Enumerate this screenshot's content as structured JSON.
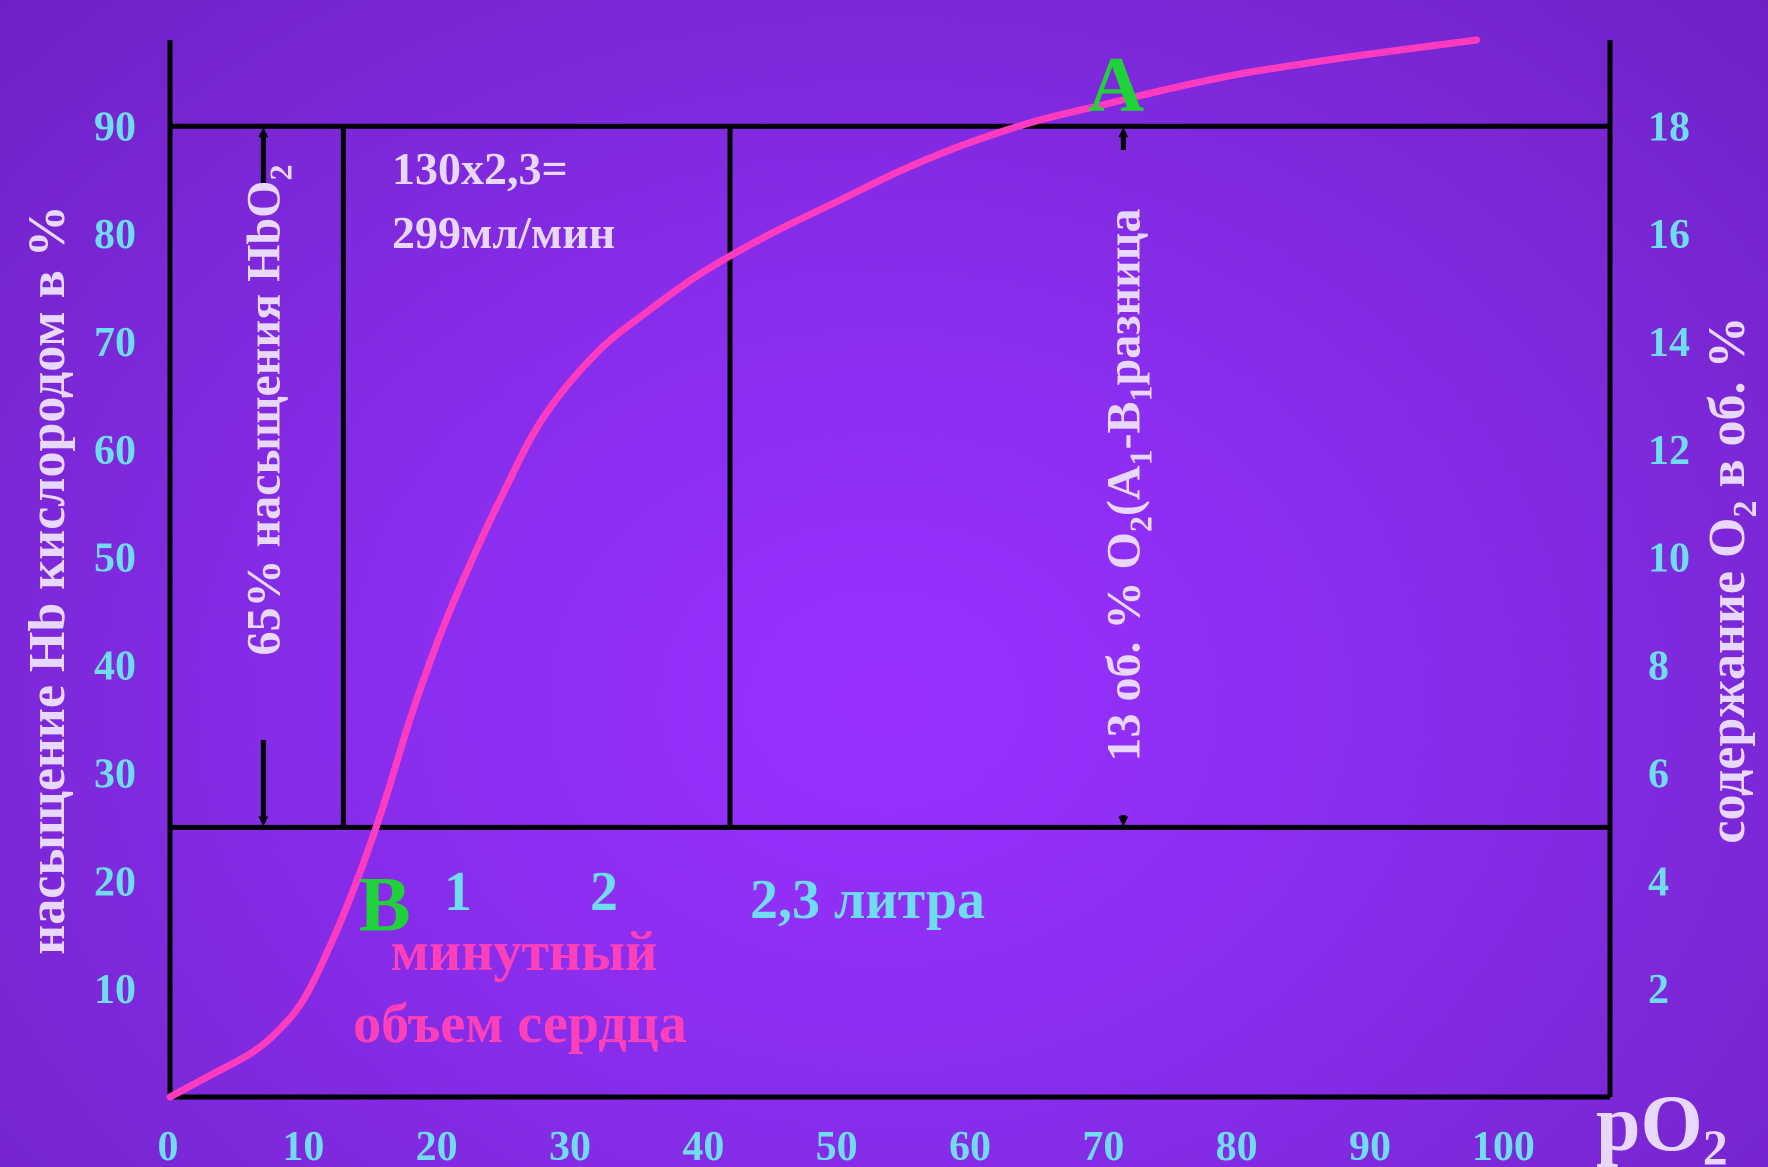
{
  "chart_data": {
    "type": "line",
    "x_ticks": [
      "0",
      "10",
      "20",
      "30",
      "40",
      "50",
      "60",
      "70",
      "80",
      "90",
      "100"
    ],
    "y_ticks_left": [
      "10",
      "20",
      "30",
      "40",
      "50",
      "60",
      "70",
      "80",
      "90"
    ],
    "y_ticks_right": [
      "2",
      "4",
      "6",
      "8",
      "10",
      "12",
      "14",
      "16",
      "18"
    ],
    "xlabel": {
      "main": "pO",
      "sub": "2"
    },
    "ylabel_left": "насыщение Hb кислородом в %",
    "ylabel_right": {
      "a": "содержание O",
      "sub": "2",
      "b": " в об. %"
    },
    "xlim": [
      0,
      108
    ],
    "ylim": [
      0,
      98
    ],
    "series": [
      {
        "color": "#ff3cc0",
        "x": [
          0,
          3,
          6,
          8,
          10,
          12,
          14,
          16,
          18,
          20,
          22,
          25,
          28,
          32,
          36,
          40,
          45,
          50,
          55,
          60,
          65,
          70,
          75,
          80,
          85,
          90,
          98
        ],
        "y": [
          0,
          2,
          4,
          6,
          9,
          14,
          20,
          27,
          35,
          42,
          48,
          56,
          63,
          69,
          73,
          76.5,
          80,
          83,
          86,
          88.5,
          90.5,
          92,
          93.5,
          94.8,
          95.8,
          96.7,
          98
        ]
      }
    ],
    "region": {
      "x0": 0,
      "x1": 108,
      "y0": 25,
      "y1": 90
    },
    "vlines_x": [
      13,
      42
    ],
    "arrow_left_x": 7,
    "arrow_right_x": 71.5,
    "point_a": {
      "label": "A",
      "x": 70.5,
      "y": 92
    },
    "point_b": {
      "label": "B",
      "x": 14,
      "y": 17.5
    },
    "annotations": {
      "arrow_left_text": {
        "a": "65% насыщения HbO",
        "sub": "2"
      },
      "arrow_right_text": {
        "a": "13 об. % O",
        "sub1": "2",
        "b": "(A",
        "sub2": "1",
        "c": "-B",
        "sub3": "1",
        "d": "разница"
      },
      "calc_line1": "130х2,3=",
      "calc_line2": "299мл/мин",
      "num_1": "1",
      "num_2": "2",
      "liters": "2,3 литра",
      "cardiac_line1": "минутный",
      "cardiac_line2": "объем сердца"
    }
  }
}
